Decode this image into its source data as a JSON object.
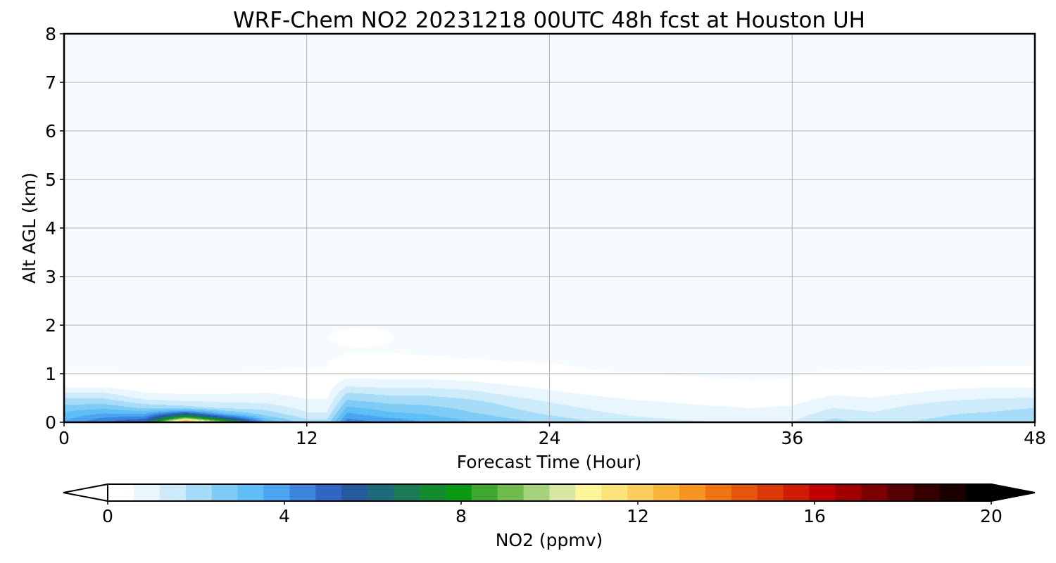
{
  "chart_data": {
    "type": "heatmap",
    "title": "WRF-Chem NO2  20231218 00UTC 48h fcst at Houston UH",
    "xlabel": "Forecast Time (Hour)",
    "ylabel": "Alt AGL (km)",
    "xlim": [
      0,
      48
    ],
    "ylim": [
      0,
      8
    ],
    "xticks": [
      0,
      12,
      24,
      36,
      48
    ],
    "yticks": [
      0,
      1,
      2,
      3,
      4,
      5,
      6,
      7,
      8
    ],
    "grid": true,
    "colorbar": {
      "label": "NO2  (ppmv)",
      "range": [
        0,
        20
      ],
      "ticks": [
        0,
        4,
        8,
        12,
        16,
        20
      ],
      "extend": "both",
      "colors": [
        "#ffffff",
        "#eaf6fd",
        "#cdebfb",
        "#a7dcf8",
        "#7ecbf6",
        "#5fbef6",
        "#4aa4ef",
        "#3b85de",
        "#2f66c4",
        "#255a9f",
        "#1e6a7a",
        "#1a7a56",
        "#138a2d",
        "#0a9a12",
        "#3fa830",
        "#70bb4c",
        "#a5d27a",
        "#d6e8a3",
        "#fff59a",
        "#fde47a",
        "#fbcd5b",
        "#f9b43a",
        "#f79420",
        "#ef7512",
        "#e5550b",
        "#da3806",
        "#cf1b03",
        "#c10000",
        "#a00000",
        "#7c0000",
        "#590000",
        "#360000",
        "#1a0000",
        "#000000"
      ]
    },
    "hours": [
      0,
      2,
      4,
      6,
      8,
      10,
      12,
      13,
      14,
      16,
      18,
      20,
      22,
      24,
      26,
      28,
      30,
      32,
      34,
      36,
      38,
      40,
      42,
      44,
      46,
      48
    ],
    "profiles": [
      [
        [
          0,
          3.6
        ],
        [
          0.2,
          3.0
        ],
        [
          0.4,
          2.2
        ],
        [
          0.6,
          1.2
        ],
        [
          0.75,
          0.4
        ],
        [
          0.95,
          0.05
        ]
      ],
      [
        [
          0,
          4.8
        ],
        [
          0.2,
          3.4
        ],
        [
          0.4,
          2.2
        ],
        [
          0.6,
          1.2
        ],
        [
          0.75,
          0.4
        ],
        [
          0.95,
          0.05
        ]
      ],
      [
        [
          0,
          5.5
        ],
        [
          0.15,
          3.8
        ],
        [
          0.3,
          2.2
        ],
        [
          0.5,
          1.0
        ],
        [
          0.7,
          0.25
        ],
        [
          0.9,
          0.05
        ]
      ],
      [
        [
          0,
          14.0
        ],
        [
          0.05,
          11.5
        ],
        [
          0.1,
          8.5
        ],
        [
          0.15,
          6.5
        ],
        [
          0.22,
          4.0
        ],
        [
          0.3,
          2.0
        ],
        [
          0.5,
          0.8
        ],
        [
          0.7,
          0.25
        ]
      ],
      [
        [
          0,
          9.0
        ],
        [
          0.05,
          7.0
        ],
        [
          0.1,
          5.2
        ],
        [
          0.18,
          3.0
        ],
        [
          0.3,
          1.6
        ],
        [
          0.5,
          0.8
        ],
        [
          0.7,
          0.3
        ]
      ],
      [
        [
          0,
          3.5
        ],
        [
          0.15,
          2.2
        ],
        [
          0.35,
          1.3
        ],
        [
          0.55,
          0.7
        ],
        [
          0.75,
          0.3
        ],
        [
          0.95,
          0.05
        ]
      ],
      [
        [
          0,
          2.0
        ],
        [
          0.2,
          1.2
        ],
        [
          0.4,
          0.7
        ],
        [
          0.6,
          0.4
        ],
        [
          0.85,
          0.15
        ],
        [
          1.1,
          0.03
        ]
      ],
      [
        [
          0,
          2.0
        ],
        [
          0.2,
          1.2
        ],
        [
          0.4,
          0.7
        ],
        [
          0.6,
          0.4
        ],
        [
          0.85,
          0.15
        ],
        [
          1.1,
          0.03
        ]
      ],
      [
        [
          0,
          4.5
        ],
        [
          0.2,
          3.5
        ],
        [
          0.4,
          2.6
        ],
        [
          0.6,
          1.8
        ],
        [
          0.8,
          0.9
        ],
        [
          1.0,
          0.3
        ],
        [
          1.25,
          0.08
        ]
      ],
      [
        [
          0,
          4.0
        ],
        [
          0.2,
          3.0
        ],
        [
          0.4,
          2.3
        ],
        [
          0.6,
          1.6
        ],
        [
          0.8,
          0.8
        ],
        [
          1.0,
          0.3
        ],
        [
          1.25,
          0.08
        ]
      ],
      [
        [
          0,
          3.5
        ],
        [
          0.2,
          2.8
        ],
        [
          0.4,
          2.2
        ],
        [
          0.6,
          1.6
        ],
        [
          0.8,
          0.8
        ],
        [
          1.0,
          0.3
        ],
        [
          1.2,
          0.08
        ]
      ],
      [
        [
          0,
          3.0
        ],
        [
          0.2,
          2.4
        ],
        [
          0.4,
          2.0
        ],
        [
          0.6,
          1.4
        ],
        [
          0.8,
          0.7
        ],
        [
          1.0,
          0.25
        ]
      ],
      [
        [
          0,
          2.6
        ],
        [
          0.2,
          2.0
        ],
        [
          0.4,
          1.6
        ],
        [
          0.6,
          1.0
        ],
        [
          0.8,
          0.5
        ],
        [
          1.0,
          0.15
        ]
      ],
      [
        [
          0,
          2.2
        ],
        [
          0.2,
          1.6
        ],
        [
          0.4,
          1.2
        ],
        [
          0.6,
          0.7
        ],
        [
          0.8,
          0.3
        ],
        [
          1.0,
          0.1
        ]
      ],
      [
        [
          0,
          1.8
        ],
        [
          0.2,
          1.3
        ],
        [
          0.4,
          0.9
        ],
        [
          0.6,
          0.5
        ],
        [
          0.8,
          0.2
        ]
      ],
      [
        [
          0,
          1.5
        ],
        [
          0.2,
          1.0
        ],
        [
          0.4,
          0.7
        ],
        [
          0.6,
          0.35
        ],
        [
          0.8,
          0.12
        ]
      ],
      [
        [
          0,
          1.3
        ],
        [
          0.2,
          0.9
        ],
        [
          0.4,
          0.6
        ],
        [
          0.6,
          0.3
        ],
        [
          0.8,
          0.08
        ]
      ],
      [
        [
          0,
          1.2
        ],
        [
          0.2,
          0.8
        ],
        [
          0.4,
          0.5
        ],
        [
          0.6,
          0.2
        ],
        [
          0.8,
          0.05
        ]
      ],
      [
        [
          0,
          1.1
        ],
        [
          0.2,
          0.7
        ],
        [
          0.4,
          0.45
        ],
        [
          0.6,
          0.18
        ]
      ],
      [
        [
          0,
          1.2
        ],
        [
          0.2,
          0.8
        ],
        [
          0.4,
          0.5
        ],
        [
          0.6,
          0.2
        ],
        [
          0.8,
          0.05
        ]
      ],
      [
        [
          0,
          2.0
        ],
        [
          0.2,
          1.4
        ],
        [
          0.4,
          0.9
        ],
        [
          0.6,
          0.5
        ],
        [
          0.8,
          0.2
        ]
      ],
      [
        [
          0,
          1.6
        ],
        [
          0.2,
          1.2
        ],
        [
          0.4,
          0.8
        ],
        [
          0.6,
          0.4
        ],
        [
          0.8,
          0.15
        ]
      ],
      [
        [
          0,
          1.8
        ],
        [
          0.2,
          1.5
        ],
        [
          0.4,
          1.1
        ],
        [
          0.6,
          0.6
        ],
        [
          0.8,
          0.2
        ]
      ],
      [
        [
          0,
          2.0
        ],
        [
          0.2,
          1.7
        ],
        [
          0.4,
          1.3
        ],
        [
          0.6,
          0.8
        ],
        [
          0.8,
          0.3
        ]
      ],
      [
        [
          0,
          2.2
        ],
        [
          0.2,
          1.8
        ],
        [
          0.4,
          1.4
        ],
        [
          0.6,
          0.9
        ],
        [
          0.8,
          0.35
        ]
      ],
      [
        [
          0,
          2.4
        ],
        [
          0.2,
          2.0
        ],
        [
          0.4,
          1.5
        ],
        [
          0.6,
          0.9
        ],
        [
          0.8,
          0.35
        ]
      ]
    ],
    "features": [
      {
        "center": [
          14.7,
          1.75
        ],
        "radius": [
          1.0,
          0.12
        ],
        "value": 0.25
      }
    ]
  }
}
